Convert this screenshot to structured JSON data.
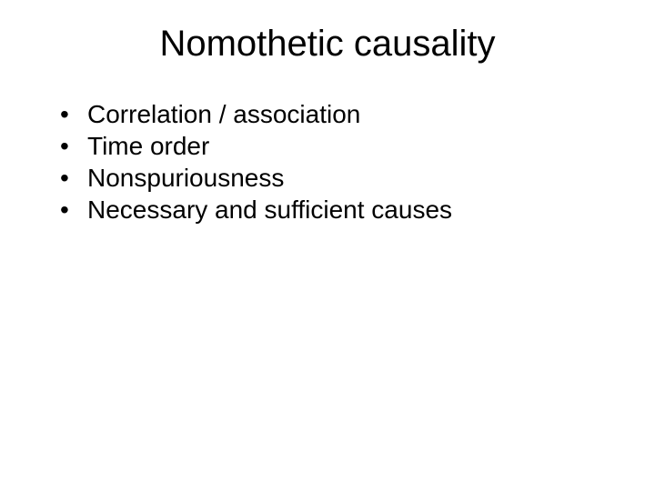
{
  "slide": {
    "title": "Nomothetic causality",
    "bullets": [
      "Correlation / association",
      "Time order",
      "Nonspuriousness",
      "Necessary and sufficient causes"
    ],
    "background_color": "#ffffff",
    "text_color": "#000000",
    "title_fontsize": 40,
    "bullet_fontsize": 28,
    "font_family": "Arial"
  }
}
